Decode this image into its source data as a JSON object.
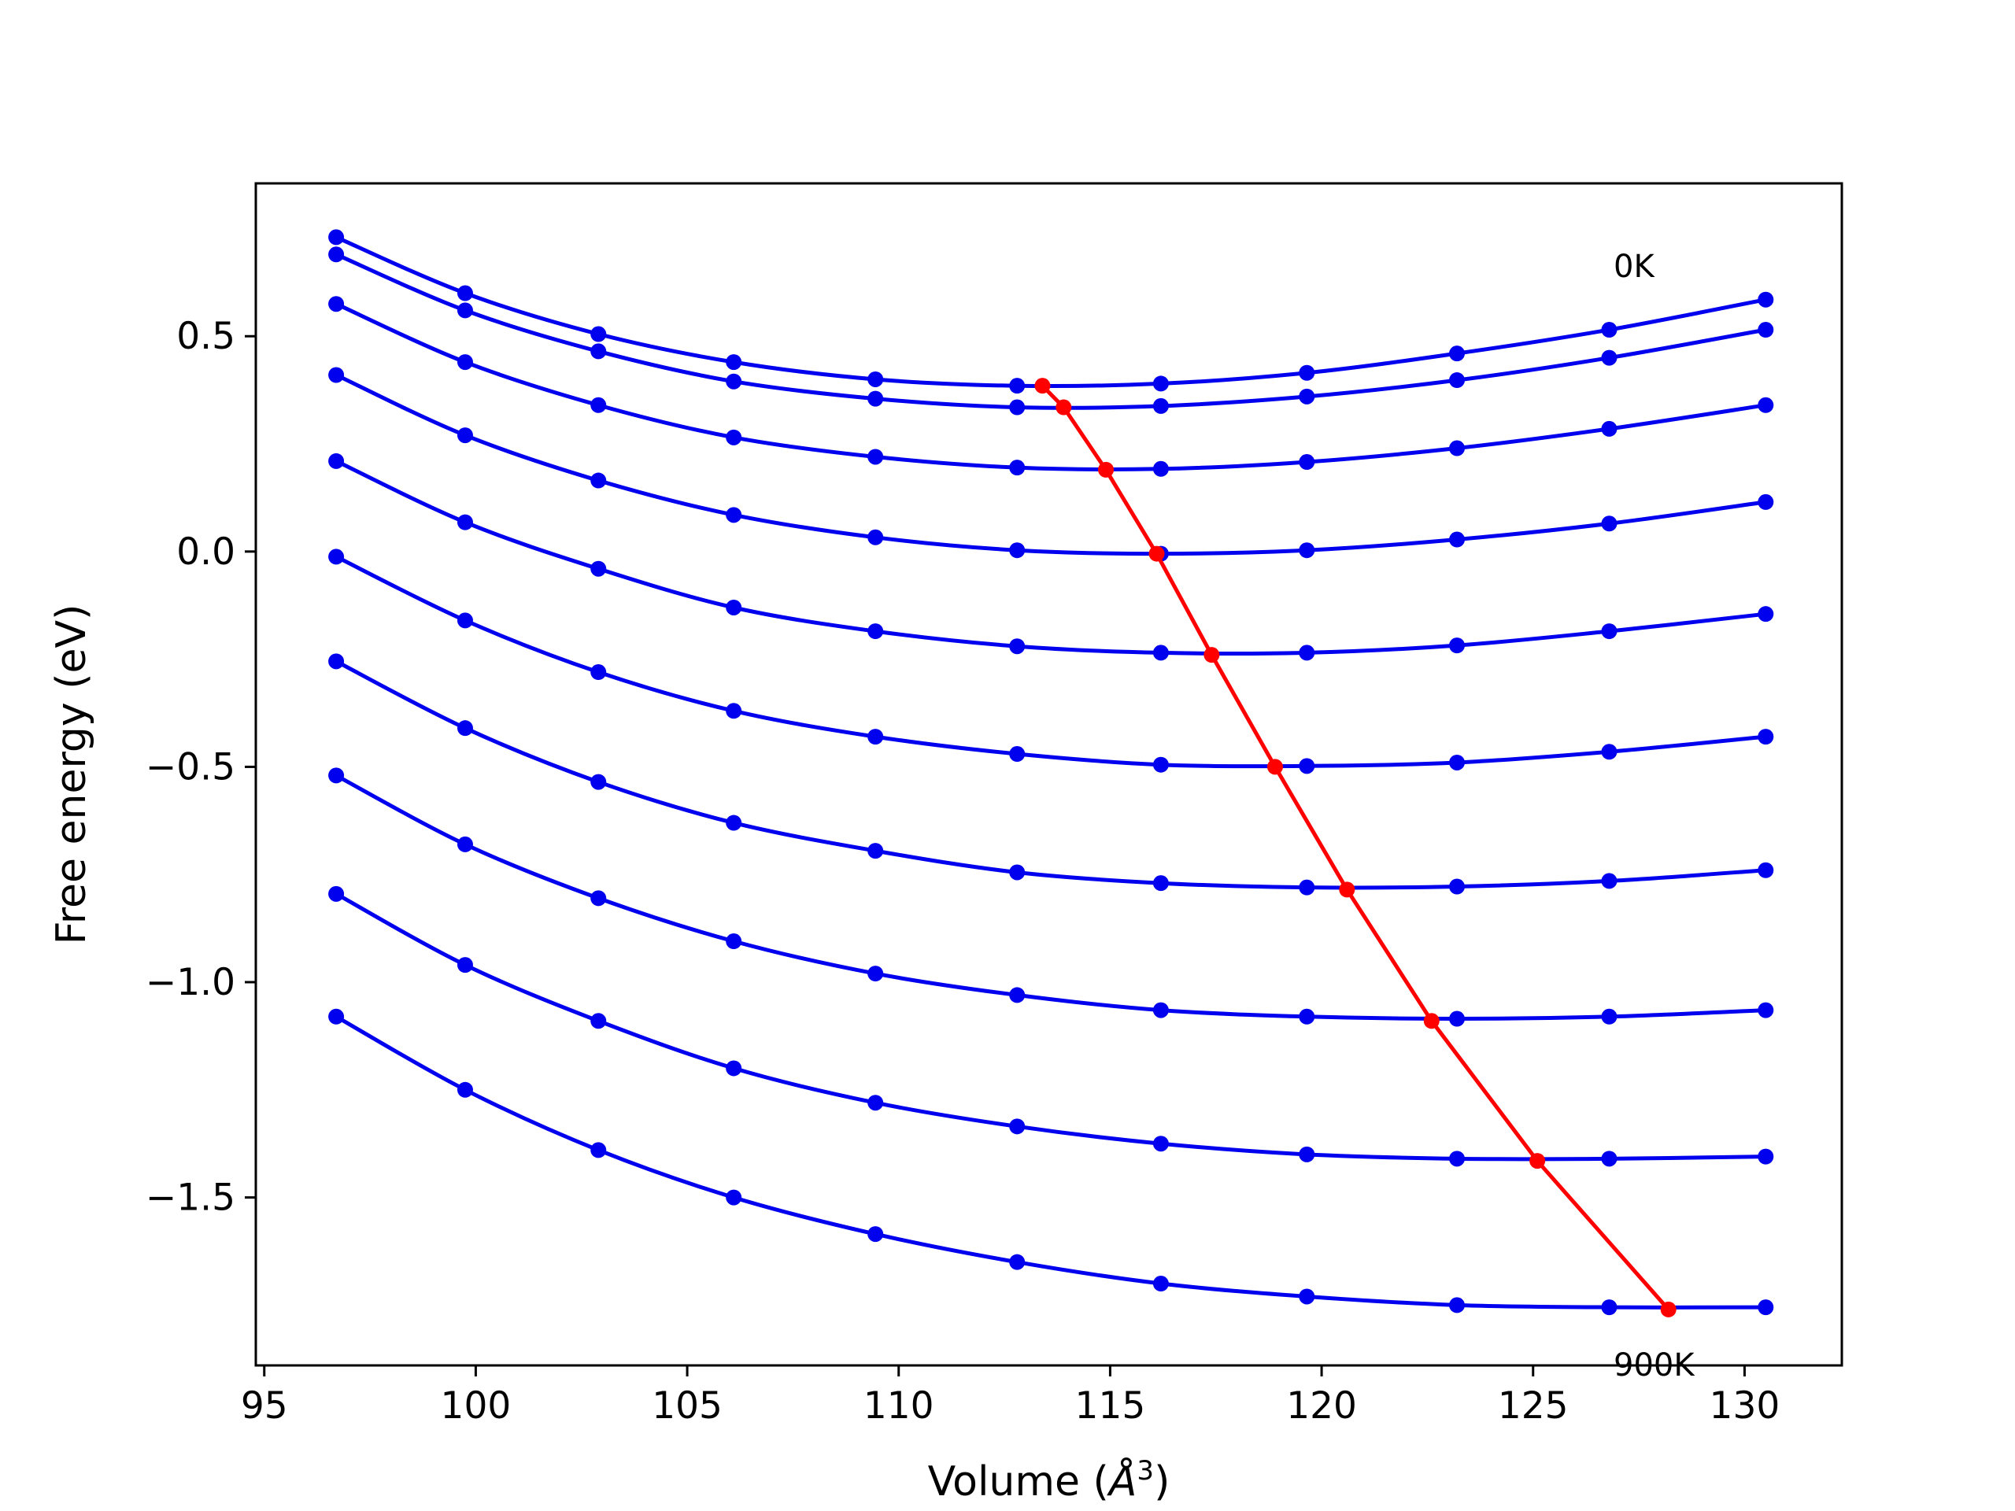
{
  "chart_data": {
    "type": "line",
    "title": "",
    "xlabel_prefix": "Volume (",
    "xlabel_symbol": "Å",
    "xlabel_exponent": "3",
    "xlabel_suffix": ")",
    "ylabel": "Free energy (eV)",
    "xlim": [
      94.8,
      132.3
    ],
    "ylim": [
      -1.89,
      0.855
    ],
    "xticks": [
      95,
      100,
      105,
      110,
      115,
      120,
      125,
      130
    ],
    "yticks": [
      0.5,
      0.0,
      -0.5,
      -1.0,
      -1.5
    ],
    "ytick_labels": [
      "0.5",
      "0.0",
      "−0.5",
      "−1.0",
      "−1.5"
    ],
    "grid": false,
    "colors": {
      "series": "#0000ee",
      "minimum": "#ff0000"
    },
    "annotations": {
      "top": "0K",
      "bottom": "900K"
    },
    "x": [
      96.7,
      99.75,
      102.9,
      106.1,
      109.45,
      112.8,
      116.2,
      119.65,
      123.2,
      126.8,
      130.5
    ],
    "series": [
      {
        "values": [
          0.73,
          0.6,
          0.505,
          0.44,
          0.4,
          0.385,
          0.39,
          0.415,
          0.46,
          0.515,
          0.585
        ]
      },
      {
        "values": [
          0.69,
          0.56,
          0.465,
          0.395,
          0.355,
          0.335,
          0.338,
          0.36,
          0.398,
          0.45,
          0.515
        ]
      },
      {
        "values": [
          0.575,
          0.44,
          0.34,
          0.265,
          0.22,
          0.195,
          0.192,
          0.208,
          0.24,
          0.285,
          0.34
        ]
      },
      {
        "values": [
          0.41,
          0.27,
          0.165,
          0.085,
          0.033,
          0.003,
          -0.005,
          0.003,
          0.028,
          0.065,
          0.115
        ]
      },
      {
        "values": [
          0.21,
          0.068,
          -0.04,
          -0.13,
          -0.185,
          -0.22,
          -0.235,
          -0.235,
          -0.218,
          -0.185,
          -0.145
        ]
      },
      {
        "values": [
          -0.012,
          -0.16,
          -0.28,
          -0.37,
          -0.43,
          -0.47,
          -0.495,
          -0.498,
          -0.49,
          -0.465,
          -0.43
        ]
      },
      {
        "values": [
          -0.255,
          -0.41,
          -0.535,
          -0.63,
          -0.695,
          -0.745,
          -0.77,
          -0.78,
          -0.778,
          -0.765,
          -0.74
        ]
      },
      {
        "values": [
          -0.52,
          -0.68,
          -0.805,
          -0.905,
          -0.98,
          -1.03,
          -1.065,
          -1.08,
          -1.085,
          -1.08,
          -1.065
        ]
      },
      {
        "values": [
          -0.795,
          -0.96,
          -1.09,
          -1.2,
          -1.28,
          -1.335,
          -1.375,
          -1.4,
          -1.41,
          -1.41,
          -1.405
        ]
      },
      {
        "values": [
          -1.08,
          -1.25,
          -1.39,
          -1.5,
          -1.585,
          -1.65,
          -1.7,
          -1.73,
          -1.75,
          -1.755,
          -1.755
        ]
      }
    ],
    "minimum_line": {
      "x": [
        113.4,
        113.9,
        114.9,
        116.1,
        117.4,
        118.9,
        120.6,
        122.6,
        125.1,
        128.2
      ],
      "y": [
        0.385,
        0.335,
        0.19,
        -0.005,
        -0.24,
        -0.5,
        -0.785,
        -1.09,
        -1.415,
        -1.76
      ]
    }
  }
}
